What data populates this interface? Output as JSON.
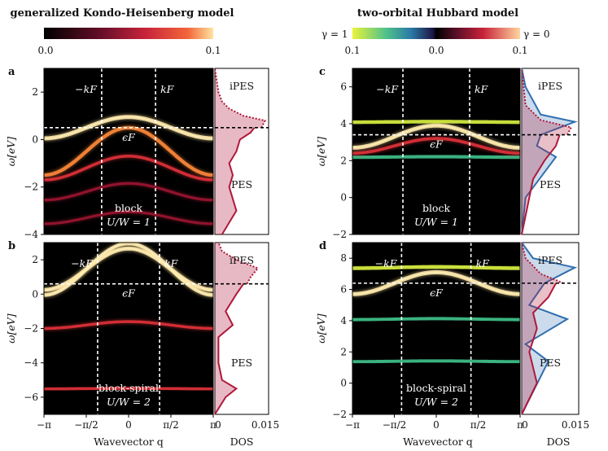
{
  "titles": {
    "left": "generalized Kondo-Heisenberg model",
    "right": "two-orbital Hubbard model"
  },
  "colorbars": {
    "left": {
      "min_label": "0.0",
      "max_label": "0.1"
    },
    "right": {
      "left_label": "0.1",
      "center_label": "0.0",
      "right_label": "0.1",
      "gamma1": "γ = 1",
      "gamma0": "γ = 0"
    }
  },
  "axes": {
    "xlabel": "Wavevector q",
    "ylabel": "ω[eV]",
    "dos_label": "DOS",
    "x_ticks": [
      "−π",
      "−π/2",
      "0",
      "π/2",
      "π"
    ],
    "dos_ticks": [
      "0",
      "0.015"
    ]
  },
  "panels": [
    {
      "id": "a",
      "label": "a",
      "yticks": [
        "2",
        "0",
        "−2",
        "−4"
      ],
      "annot_kmin": "−kF",
      "annot_kmax": "kF",
      "annot_ef": "ϵF",
      "annot_block": "block",
      "annot_uw": "U/W = 1",
      "ipes": "iPES",
      "pes": "PES"
    },
    {
      "id": "b",
      "label": "b",
      "yticks": [
        "2",
        "0",
        "−2",
        "−4",
        "−6"
      ],
      "annot_kmin": "−kF",
      "annot_kmax": "kF",
      "annot_ef": "ϵF",
      "annot_block": "block-spiral",
      "annot_uw": "U/W = 2",
      "ipes": "iPES",
      "pes": "PES"
    },
    {
      "id": "c",
      "label": "c",
      "yticks": [
        "6",
        "4",
        "2",
        "0",
        "−2"
      ],
      "annot_kmin": "−kF",
      "annot_kmax": "kF",
      "annot_ef": "ϵF",
      "annot_block": "block",
      "annot_uw": "U/W = 1",
      "ipes": "iPES",
      "pes": "PES"
    },
    {
      "id": "d",
      "label": "d",
      "yticks": [
        "8",
        "6",
        "4",
        "2",
        "0",
        "−2"
      ],
      "annot_kmin": "−kF",
      "annot_kmax": "kF",
      "annot_ef": "ϵF",
      "annot_block": "block-spiral",
      "annot_uw": "U/W = 2",
      "ipes": "iPES",
      "pes": "PES"
    }
  ],
  "chart_data": [
    {
      "panel": "a",
      "type": "heatmap",
      "x_range": [
        -3.1416,
        3.1416
      ],
      "ylim": [
        -4,
        3
      ],
      "fermi_level": 0.5,
      "kF": 1.0,
      "bands": [
        {
          "type": "cos",
          "center": 0.5,
          "amp": 0.45,
          "intensity": 1.0
        },
        {
          "type": "cos",
          "center": -0.5,
          "amp": 1.0,
          "intensity": 0.75
        },
        {
          "type": "cos",
          "center": -1.2,
          "amp": 0.5,
          "intensity": 0.45
        },
        {
          "type": "cos",
          "center": -2.2,
          "amp": 0.35,
          "intensity": 0.35
        },
        {
          "type": "cos",
          "center": -3.3,
          "amp": 0.25,
          "intensity": 0.3
        }
      ],
      "dos": {
        "occupied": [
          [
            -4,
            0.002
          ],
          [
            -3.5,
            0.004
          ],
          [
            -3.0,
            0.006
          ],
          [
            -2.5,
            0.005
          ],
          [
            -2.0,
            0.004
          ],
          [
            -1.5,
            0.005
          ],
          [
            -1.0,
            0.004
          ],
          [
            -0.5,
            0.006
          ],
          [
            0.0,
            0.007
          ],
          [
            0.3,
            0.01
          ],
          [
            0.5,
            0.011
          ]
        ],
        "unoccupied": [
          [
            0.5,
            0.013
          ],
          [
            0.8,
            0.014
          ],
          [
            1.0,
            0.008
          ],
          [
            1.3,
            0.004
          ],
          [
            1.6,
            0.002
          ],
          [
            2.0,
            0.001
          ],
          [
            3.0,
            0.0
          ]
        ]
      }
    },
    {
      "panel": "b",
      "type": "heatmap",
      "x_range": [
        -3.1416,
        3.1416
      ],
      "ylim": [
        -7,
        3
      ],
      "fermi_level": 0.6,
      "kF": 1.15,
      "bands": [
        {
          "type": "cos",
          "center": 1.45,
          "amp": 1.2,
          "intensity": 0.9
        },
        {
          "type": "cos",
          "center": 1.45,
          "amp": 1.5,
          "intensity": 0.85
        },
        {
          "type": "cos",
          "center": -1.8,
          "amp": 0.2,
          "intensity": 0.4
        },
        {
          "type": "flat",
          "center": -5.5,
          "amp": 0.1,
          "intensity": 0.5
        }
      ],
      "dos": {
        "occupied": [
          [
            -7,
            0.0
          ],
          [
            -6.0,
            0.003
          ],
          [
            -5.5,
            0.006
          ],
          [
            -5.0,
            0.002
          ],
          [
            -4.0,
            0.001
          ],
          [
            -2.5,
            0.001
          ],
          [
            -1.8,
            0.005
          ],
          [
            -1.0,
            0.003
          ],
          [
            0.0,
            0.006
          ],
          [
            0.6,
            0.008
          ]
        ],
        "unoccupied": [
          [
            0.6,
            0.009
          ],
          [
            1.0,
            0.01
          ],
          [
            1.5,
            0.012
          ],
          [
            2.0,
            0.006
          ],
          [
            2.5,
            0.002
          ],
          [
            3.0,
            0.001
          ]
        ]
      }
    },
    {
      "panel": "c",
      "type": "heatmap",
      "x_range": [
        -3.1416,
        3.1416
      ],
      "ylim": [
        -2,
        7
      ],
      "fermi_level": 3.4,
      "kF": 1.25,
      "bands": [
        {
          "type": "cos",
          "center": 3.3,
          "amp": 0.6,
          "intensity": 1.0
        },
        {
          "type": "flat",
          "center": 4.1,
          "amp": 0.1,
          "intensity": 0.8,
          "gamma": 1
        },
        {
          "type": "flat",
          "center": 2.2,
          "amp": 0.1,
          "intensity": 0.7,
          "gamma": 1
        },
        {
          "type": "cos",
          "center": 2.8,
          "amp": 0.4,
          "intensity": 0.5
        }
      ],
      "dos": {
        "red_occupied": [
          [
            -2,
            0.0
          ],
          [
            -1.0,
            0.001
          ],
          [
            0.0,
            0.002
          ],
          [
            1.0,
            0.003
          ],
          [
            2.0,
            0.006
          ],
          [
            2.8,
            0.009
          ],
          [
            3.4,
            0.01
          ]
        ],
        "red_unoccupied": [
          [
            3.4,
            0.012
          ],
          [
            3.8,
            0.013
          ],
          [
            4.2,
            0.005
          ],
          [
            5.0,
            0.001
          ],
          [
            7.0,
            0.0
          ]
        ],
        "blue": [
          [
            -2,
            0.0
          ],
          [
            0.0,
            0.001
          ],
          [
            2.2,
            0.009
          ],
          [
            2.8,
            0.004
          ],
          [
            3.4,
            0.005
          ],
          [
            4.1,
            0.014
          ],
          [
            4.5,
            0.005
          ],
          [
            6.0,
            0.001
          ],
          [
            7.0,
            0.0
          ]
        ]
      }
    },
    {
      "panel": "d",
      "type": "heatmap",
      "x_range": [
        -3.1416,
        3.1416
      ],
      "ylim": [
        -2,
        9
      ],
      "fermi_level": 6.4,
      "kF": 1.3,
      "bands": [
        {
          "type": "cos",
          "center": 6.4,
          "amp": 0.7,
          "intensity": 1.0
        },
        {
          "type": "flat",
          "center": 7.4,
          "amp": 0.3,
          "intensity": 0.8,
          "gamma": 1
        },
        {
          "type": "flat",
          "center": 4.1,
          "amp": 0.2,
          "intensity": 0.6,
          "gamma": 1
        },
        {
          "type": "flat",
          "center": 1.4,
          "amp": 0.15,
          "intensity": 0.6,
          "gamma": 1
        }
      ],
      "dos": {
        "red_occupied": [
          [
            -2,
            0.0
          ],
          [
            0.0,
            0.004
          ],
          [
            1.0,
            0.003
          ],
          [
            2.0,
            0.002
          ],
          [
            3.5,
            0.004
          ],
          [
            4.5,
            0.003
          ],
          [
            5.5,
            0.007
          ],
          [
            6.4,
            0.009
          ]
        ],
        "red_unoccupied": [
          [
            6.4,
            0.011
          ],
          [
            7.0,
            0.005
          ],
          [
            8.0,
            0.001
          ],
          [
            9.0,
            0.0
          ]
        ],
        "blue": [
          [
            -2,
            0.0
          ],
          [
            1.4,
            0.007
          ],
          [
            2.5,
            0.001
          ],
          [
            4.1,
            0.012
          ],
          [
            5.0,
            0.002
          ],
          [
            6.4,
            0.006
          ],
          [
            7.4,
            0.014
          ],
          [
            8.0,
            0.003
          ],
          [
            9.0,
            0.0
          ]
        ]
      }
    }
  ]
}
